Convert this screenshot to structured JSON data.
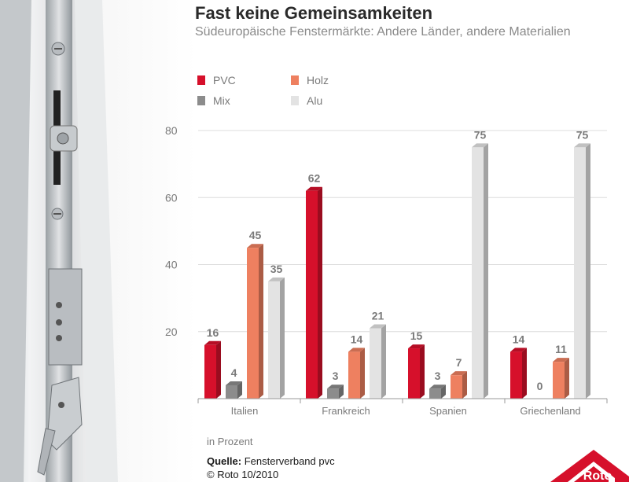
{
  "chart_data": {
    "type": "bar",
    "title": "Fast keine Gemeinsamkeiten",
    "subtitle": "Südeuropäische Fenstermärkte: Andere Länder, andere Materialien",
    "categories": [
      "Italien",
      "Frankreich",
      "Spanien",
      "Griechenland"
    ],
    "series": [
      {
        "name": "PVC",
        "color": "#d6102b",
        "values": [
          16,
          62,
          15,
          14
        ]
      },
      {
        "name": "Mix",
        "color": "#8c8c8c",
        "values": [
          4,
          3,
          3,
          0
        ]
      },
      {
        "name": "Holz",
        "color": "#ee8060",
        "values": [
          45,
          14,
          7,
          11
        ]
      },
      {
        "name": "Alu",
        "color": "#e3e3e3",
        "values": [
          35,
          21,
          75,
          75
        ]
      }
    ],
    "yticks": [
      20,
      40,
      60,
      80
    ],
    "ylim": [
      0,
      80
    ],
    "grid": true,
    "legend": "top-left",
    "unit_note": "in Prozent"
  },
  "source": {
    "label": "Quelle:",
    "text": "Fensterverband pvc",
    "copyright": "© Roto 10/2010"
  },
  "logo": {
    "text": "Roto",
    "color": "#d6102b"
  }
}
